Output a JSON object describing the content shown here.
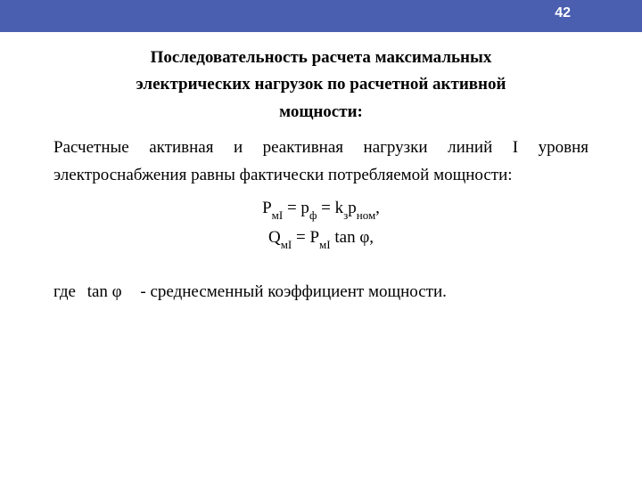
{
  "header": {
    "page_number": "42",
    "bar_color": "#4a5fb0",
    "text_color": "#ffffff"
  },
  "title": {
    "line1": "Последовательность расчета  максимальных",
    "line2": "электрических   нагрузок   по расчетной активной",
    "line3": "мощности:"
  },
  "paragraph": "Расчетные   активная и реактивная нагрузки линий I уровня электроснабжения равны фактически потребляемой мощности:",
  "formulas": {
    "line1_html": "P<span class=\"sub\">мI</span> = p<span class=\"sub\">ф</span> = k<span class=\"sub\">з</span>p<span class=\"sub\">ном</span>,",
    "line2_html": "Q<span class=\"sub\">мI</span> = P<span class=\"sub\">мI</span> tan φ,"
  },
  "where": {
    "prefix": "где",
    "symbol": "tan φ",
    "desc": "- среднесменный коэффициент мощности."
  },
  "style": {
    "body_font": "Times New Roman",
    "title_fontsize_pt": 14,
    "body_fontsize_pt": 14,
    "formula_fontsize_pt": 14,
    "text_color": "#000000",
    "background_color": "#ffffff"
  }
}
